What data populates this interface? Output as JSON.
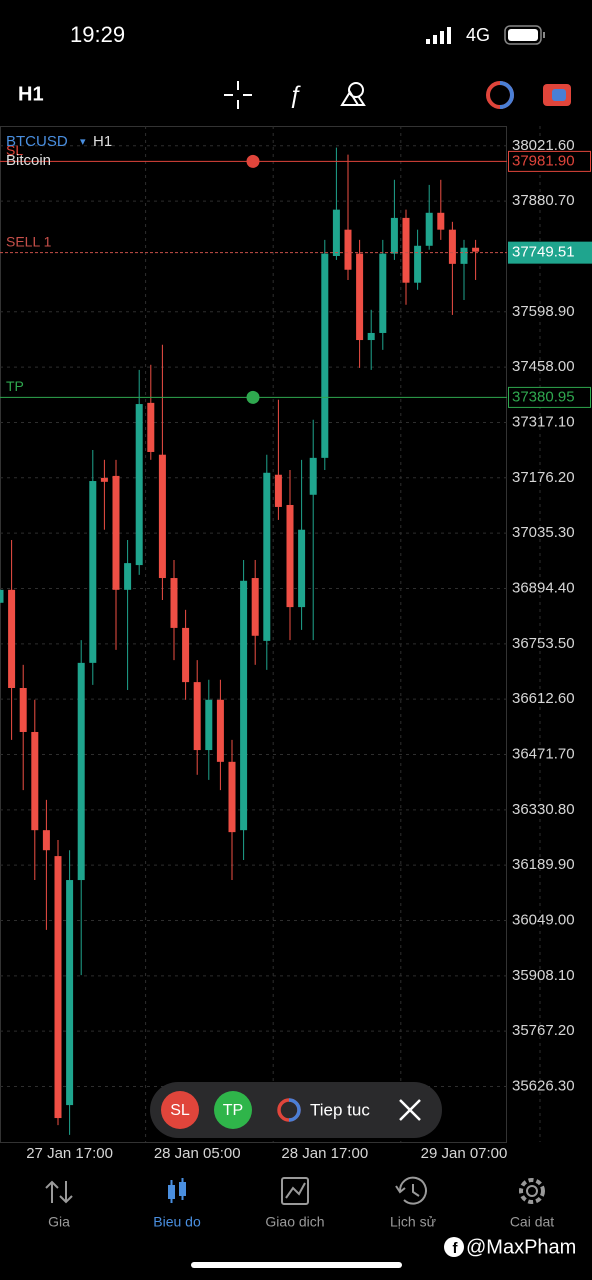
{
  "status_bar": {
    "time": "19:29",
    "network": "4G"
  },
  "toolbar": {
    "timeframe": "H1"
  },
  "chart_data": {
    "type": "candlestick",
    "symbol": "BTCUSD",
    "timeframe_marker": "▾",
    "timeframe": "H1",
    "name": "Bitcoin",
    "up_color": "#1fa58e",
    "down_color": "#ef4f45",
    "categories": [
      null,
      null,
      null,
      null,
      null,
      null,
      "27 Jan 17:00",
      null,
      null,
      null,
      null,
      null,
      null,
      null,
      null,
      null,
      null,
      "28 Jan 05:00",
      null,
      null,
      null,
      null,
      null,
      null,
      null,
      null,
      null,
      null,
      "28 Jan 17:00",
      null,
      null,
      null,
      null,
      null,
      null,
      null,
      null,
      null,
      null,
      null,
      "29 Jan 07:00",
      null
    ],
    "open": [
      36858,
      36891,
      36641,
      36529,
      36279,
      36213,
      35579,
      36152,
      36705,
      37176,
      37181,
      36891,
      36954,
      37367,
      37235,
      36921,
      36794,
      36656,
      36483,
      36611,
      36453,
      36279,
      36921,
      36761,
      37184,
      37107,
      36847,
      37133,
      37227,
      37741,
      37808,
      37747,
      37527,
      37545,
      37747,
      37838,
      37673,
      37767,
      37851,
      37808,
      37721,
      37762
    ],
    "high": [
      36891,
      37018,
      36700,
      36611,
      36356,
      36254,
      36228,
      36763,
      37247,
      37222,
      37222,
      37018,
      37451,
      37464,
      37515,
      36967,
      36840,
      36712,
      36662,
      36662,
      36509,
      36967,
      36967,
      37235,
      37375,
      37196,
      37222,
      37324,
      37782,
      38017,
      37999,
      37782,
      37604,
      37782,
      37935,
      37859,
      37808,
      37922,
      37935,
      37828,
      37782,
      37782
    ],
    "low": [
      36858,
      36509,
      36381,
      36152,
      36025,
      35528,
      35503,
      35910,
      36649,
      37044,
      36738,
      36636,
      36929,
      37222,
      36865,
      36712,
      36611,
      36420,
      36407,
      36381,
      36152,
      36203,
      36700,
      36687,
      37069,
      36763,
      36789,
      36763,
      37196,
      37731,
      37680,
      37456,
      37451,
      37502,
      37731,
      37617,
      37655,
      37757,
      37782,
      37591,
      37629,
      37680
    ],
    "close": [
      36891,
      36641,
      36529,
      36279,
      36228,
      35546,
      36152,
      36705,
      37168,
      37166,
      36891,
      36959,
      37364,
      37242,
      36921,
      36794,
      36656,
      36483,
      36611,
      36453,
      36274,
      36914,
      36774,
      37189,
      37102,
      36847,
      37044,
      37227,
      37747,
      37859,
      37706,
      37527,
      37545,
      37747,
      37838,
      37673,
      37767,
      37851,
      37808,
      37721,
      37762,
      37752
    ],
    "ylim": [
      35485,
      38072
    ],
    "yticks": [
      {
        "value": 38021.6,
        "label": "38021.60"
      },
      {
        "value": 37880.7,
        "label": "37880.70"
      },
      {
        "value": 37598.9,
        "label": "37598.90"
      },
      {
        "value": 37458,
        "label": "37458.00"
      },
      {
        "value": 37317.1,
        "label": "37317.10"
      },
      {
        "value": 37176.2,
        "label": "37176.20"
      },
      {
        "value": 37035.3,
        "label": "37035.30"
      },
      {
        "value": 36894.4,
        "label": "36894.40"
      },
      {
        "value": 36753.5,
        "label": "36753.50"
      },
      {
        "value": 36612.6,
        "label": "36612.60"
      },
      {
        "value": 36471.7,
        "label": "36471.70"
      },
      {
        "value": 36330.8,
        "label": "36330.80"
      },
      {
        "value": 36189.9,
        "label": "36189.90"
      },
      {
        "value": 36049,
        "label": "36049.00"
      },
      {
        "value": 35908.1,
        "label": "35908.10"
      },
      {
        "value": 35767.2,
        "label": "35767.20"
      },
      {
        "value": 35626.3,
        "label": "35626.30"
      }
    ],
    "grid": true,
    "price_lines": [
      {
        "label": "SL",
        "value": 37981.9,
        "value_label": "37981.90",
        "color": "#e0453b",
        "boxed": "outline"
      },
      {
        "label": "SELL 1",
        "value": 37749.51,
        "value_label": "37749.51",
        "color": "#c8504a",
        "boxed": "fill",
        "box_color": "#1fa58e"
      },
      {
        "label": "TP",
        "value": 37380.95,
        "value_label": "37380.95",
        "color": "#2fa84f",
        "boxed": "outline"
      }
    ]
  },
  "order_bar": {
    "sl": "SL",
    "tp": "TP",
    "continue": "Tiep tuc"
  },
  "bottom_nav": {
    "items": [
      "Gia",
      "Bieu do",
      "Giao dich",
      "Lịch sử",
      "Cai dat"
    ],
    "active": 1
  },
  "watermark": "@MaxPham"
}
